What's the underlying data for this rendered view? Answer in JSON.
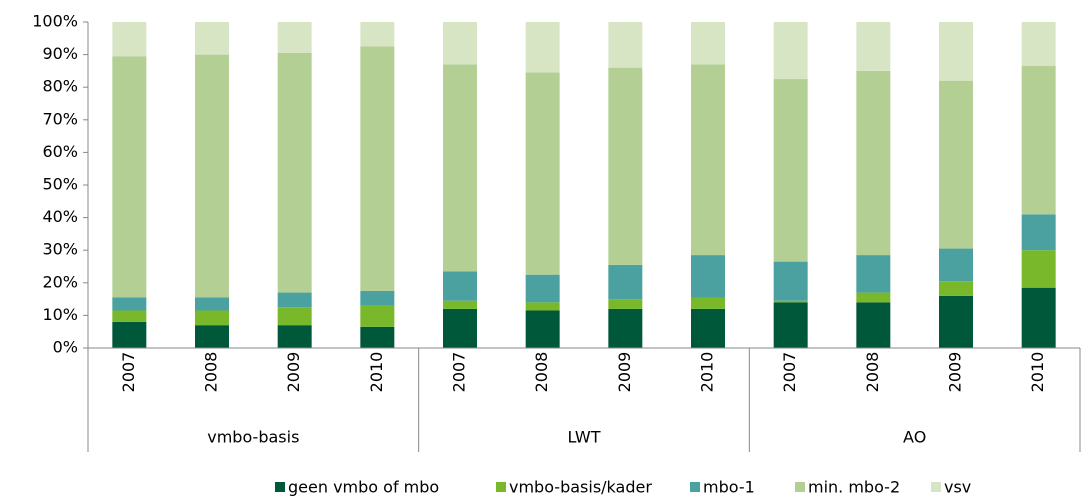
{
  "chart_data": {
    "type": "stacked_bar",
    "categories": [
      "2007",
      "2008",
      "2009",
      "2010",
      "2007",
      "2008",
      "2009",
      "2010",
      "2007",
      "2008",
      "2009",
      "2010"
    ],
    "groups": [
      "vmbo-basis",
      "LWT",
      "AO"
    ],
    "series": [
      {
        "name": "geen vmbo of mbo",
        "color": "#00583b",
        "values": [
          8,
          7,
          7,
          6.5,
          12,
          11.5,
          12,
          12,
          14,
          14,
          16,
          18.5
        ]
      },
      {
        "name": "vmbo-basis/kader",
        "color": "#78b82a",
        "values": [
          3.5,
          4.5,
          5.5,
          6.5,
          2.5,
          2.5,
          3,
          3.5,
          0.5,
          3,
          4.5,
          11.5
        ]
      },
      {
        "name": "mbo-1",
        "color": "#4aa19f",
        "values": [
          4,
          4,
          4.5,
          4.5,
          9,
          8.5,
          10.5,
          13,
          12,
          11.5,
          10,
          11
        ]
      },
      {
        "name": "min. mbo-2",
        "color": "#b4cf93",
        "values": [
          74,
          74.5,
          73.5,
          75,
          63.5,
          62,
          60.5,
          58.5,
          56,
          56.5,
          51.5,
          45.5
        ]
      },
      {
        "name": "vsv",
        "color": "#d7e5c5",
        "values": [
          10.5,
          10,
          9.5,
          7.5,
          13,
          15.5,
          14,
          13,
          17.5,
          15,
          18,
          13.5
        ]
      }
    ],
    "ylim": [
      0,
      100
    ],
    "yticks": [
      {
        "value": 0,
        "label": "0%"
      },
      {
        "value": 10,
        "label": "10%"
      },
      {
        "value": 20,
        "label": "20%"
      },
      {
        "value": 30,
        "label": "30%"
      },
      {
        "value": 40,
        "label": "40%"
      },
      {
        "value": 50,
        "label": "50%"
      },
      {
        "value": 60,
        "label": "60%"
      },
      {
        "value": 70,
        "label": "70%"
      },
      {
        "value": 80,
        "label": "80%"
      },
      {
        "value": 90,
        "label": "90%"
      },
      {
        "value": 100,
        "label": "100%"
      }
    ],
    "legend": "bottom"
  }
}
